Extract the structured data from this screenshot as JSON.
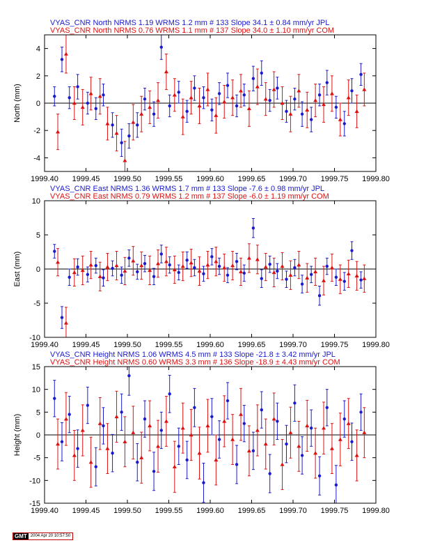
{
  "colors": {
    "jpl": "#1a1acc",
    "com": "#dd1111",
    "axis": "#000000"
  },
  "footer": {
    "logo": "GMT",
    "timestamp": "2004 Apr 20 10:57:50"
  },
  "chart_data": [
    {
      "type": "scatter",
      "component": "north",
      "title_lines": [
        "VYAS_CNR North NRMS 1.19 WRMS  1.2 mm # 133 Slope   34.1 ±  0.84 mm/yr JPL",
        "VYAS_CNR North NRMS 0.76 WRMS  1.1 mm # 137 Slope   34.0 ±  1.10 mm/yr COM"
      ],
      "ylabel": "North (mm)",
      "xlim": [
        1999.4,
        1999.8
      ],
      "ylim": [
        -5,
        5
      ],
      "xticks": [
        1999.4,
        1999.45,
        1999.5,
        1999.55,
        1999.6,
        1999.65,
        1999.7,
        1999.75,
        1999.8
      ],
      "xtick_labels": [
        "1999.40",
        "1999.45",
        "1999.50",
        "1999.55",
        "1999.60",
        "1999.65",
        "1999.70",
        "1999.75",
        "1999.80"
      ],
      "yticks": [
        -4,
        -2,
        0,
        2,
        4
      ],
      "ytick_labels": [
        "-4",
        "-2",
        "0",
        "2",
        "4"
      ],
      "grid": false,
      "zero_line": true,
      "series": [
        {
          "name": "JPL",
          "marker": "circle",
          "t": [
            1999.412,
            1999.421,
            1999.43,
            1999.44,
            1999.452,
            1999.462,
            1999.471,
            1999.482,
            1999.493,
            1999.502,
            1999.512,
            1999.521,
            1999.532,
            1999.541,
            1999.551,
            1999.562,
            1999.572,
            1999.581,
            1999.592,
            1999.602,
            1999.611,
            1999.621,
            1999.632,
            1999.641,
            1999.652,
            1999.662,
            1999.672,
            1999.681,
            1999.692,
            1999.702,
            1999.711,
            1999.722,
            1999.732,
            1999.741,
            1999.752,
            1999.762,
            1999.771,
            1999.782
          ],
          "values": [
            0.5,
            3.2,
            0.4,
            1.2,
            0.0,
            -0.4,
            0.6,
            -1.6,
            -2.9,
            -2.4,
            -1.6,
            0.3,
            -0.8,
            4.1,
            -0.2,
            0.8,
            -0.6,
            1.1,
            0.4,
            -0.5,
            0.7,
            1.3,
            -0.2,
            0.6,
            1.8,
            2.2,
            0.2,
            1.1,
            -0.6,
            0.3,
            -0.8,
            -1.2,
            0.6,
            1.5,
            -0.3,
            -1.5,
            0.9,
            2.1
          ],
          "err": [
            0.7,
            0.9,
            0.8,
            0.9,
            0.8,
            0.8,
            0.8,
            0.9,
            1.0,
            0.9,
            0.9,
            0.8,
            0.9,
            0.9,
            0.8,
            0.8,
            0.8,
            0.9,
            0.8,
            0.8,
            0.8,
            0.9,
            0.8,
            0.8,
            0.9,
            0.9,
            0.8,
            0.8,
            0.8,
            0.8,
            0.9,
            0.9,
            0.8,
            0.9,
            0.8,
            0.9,
            0.9,
            0.8
          ]
        },
        {
          "name": "COM",
          "marker": "triangle",
          "t": [
            1999.416,
            1999.426,
            1999.436,
            1999.446,
            1999.456,
            1999.467,
            1999.476,
            1999.487,
            1999.497,
            1999.507,
            1999.517,
            1999.527,
            1999.537,
            1999.547,
            1999.557,
            1999.567,
            1999.577,
            1999.587,
            1999.597,
            1999.607,
            1999.617,
            1999.627,
            1999.637,
            1999.647,
            1999.657,
            1999.667,
            1999.677,
            1999.687,
            1999.697,
            1999.707,
            1999.717,
            1999.727,
            1999.737,
            1999.747,
            1999.757,
            1999.767,
            1999.777,
            1999.786
          ],
          "values": [
            -2.1,
            3.6,
            0.0,
            -0.3,
            0.7,
            0.5,
            -1.5,
            -2.2,
            -4.2,
            -1.4,
            -0.8,
            -0.3,
            0.2,
            2.3,
            0.6,
            -1.0,
            0.4,
            -0.2,
            1.0,
            -0.9,
            0.1,
            0.4,
            0.9,
            -0.4,
            1.2,
            0.3,
            1.0,
            0.0,
            -0.8,
            0.9,
            -0.5,
            0.2,
            -0.1,
            0.7,
            -1.2,
            0.4,
            -0.6,
            1.0
          ],
          "err": [
            1.3,
            1.4,
            1.2,
            1.3,
            1.2,
            1.3,
            1.2,
            1.3,
            1.4,
            1.3,
            1.3,
            1.2,
            1.3,
            1.3,
            1.2,
            1.3,
            1.2,
            1.3,
            1.2,
            1.3,
            1.2,
            1.3,
            1.2,
            1.3,
            1.3,
            1.2,
            1.3,
            1.2,
            1.3,
            1.2,
            1.3,
            1.2,
            1.3,
            1.3,
            1.2,
            1.3,
            1.2,
            1.2
          ]
        }
      ]
    },
    {
      "type": "scatter",
      "component": "east",
      "title_lines": [
        "VYAS_CNR East NRMS 1.36 WRMS  1.7 mm # 133 Slope   -7.6 ±  0.98 mm/yr JPL",
        "VYAS_CNR East NRMS 0.79 WRMS  1.2 mm # 137 Slope   -6.0 ±  1.19 mm/yr COM"
      ],
      "ylabel": "East (mm)",
      "xlim": [
        1999.4,
        1999.8
      ],
      "ylim": [
        -10,
        10
      ],
      "xticks": [
        1999.4,
        1999.45,
        1999.5,
        1999.55,
        1999.6,
        1999.65,
        1999.7,
        1999.75,
        1999.8
      ],
      "xtick_labels": [
        "1999.40",
        "1999.45",
        "1999.50",
        "1999.55",
        "1999.60",
        "1999.65",
        "1999.70",
        "1999.75",
        "1999.80"
      ],
      "yticks": [
        -10,
        -5,
        0,
        5,
        10
      ],
      "ytick_labels": [
        "-10",
        "-5",
        "0",
        "5",
        "10"
      ],
      "grid": false,
      "zero_line": true,
      "series": [
        {
          "name": "JPL",
          "marker": "circle",
          "t": [
            1999.412,
            1999.421,
            1999.43,
            1999.44,
            1999.452,
            1999.462,
            1999.471,
            1999.482,
            1999.493,
            1999.502,
            1999.512,
            1999.521,
            1999.532,
            1999.541,
            1999.551,
            1999.562,
            1999.572,
            1999.581,
            1999.592,
            1999.602,
            1999.611,
            1999.621,
            1999.632,
            1999.641,
            1999.652,
            1999.662,
            1999.672,
            1999.681,
            1999.692,
            1999.702,
            1999.711,
            1999.722,
            1999.732,
            1999.741,
            1999.752,
            1999.762,
            1999.771,
            1999.782
          ],
          "values": [
            2.6,
            -7.1,
            -1.2,
            0.3,
            -0.8,
            0.5,
            -1.3,
            0.1,
            -0.9,
            1.6,
            -0.4,
            0.8,
            -1.1,
            2.2,
            0.6,
            -0.5,
            1.3,
            0.2,
            -0.7,
            1.8,
            0.4,
            -0.9,
            1.1,
            -0.6,
            6.0,
            -1.4,
            0.7,
            -0.3,
            -1.5,
            0.2,
            -2.2,
            -0.8,
            -3.9,
            0.4,
            -1.2,
            -1.8,
            2.7,
            -1.6
          ],
          "err": [
            1.0,
            1.6,
            1.2,
            1.2,
            1.1,
            1.1,
            1.2,
            1.1,
            1.2,
            1.2,
            1.1,
            1.2,
            1.2,
            1.3,
            1.2,
            1.1,
            1.2,
            1.2,
            1.1,
            1.2,
            1.2,
            1.1,
            1.2,
            1.2,
            1.4,
            1.3,
            1.2,
            1.1,
            1.2,
            1.2,
            1.3,
            1.2,
            1.4,
            1.2,
            1.2,
            1.3,
            1.3,
            1.2
          ]
        },
        {
          "name": "COM",
          "marker": "triangle",
          "t": [
            1999.416,
            1999.426,
            1999.436,
            1999.446,
            1999.456,
            1999.467,
            1999.476,
            1999.487,
            1999.497,
            1999.507,
            1999.517,
            1999.527,
            1999.537,
            1999.547,
            1999.557,
            1999.567,
            1999.577,
            1999.587,
            1999.597,
            1999.607,
            1999.617,
            1999.627,
            1999.637,
            1999.647,
            1999.657,
            1999.667,
            1999.677,
            1999.687,
            1999.697,
            1999.707,
            1999.717,
            1999.727,
            1999.737,
            1999.747,
            1999.757,
            1999.767,
            1999.777,
            1999.786
          ],
          "values": [
            1.0,
            -7.9,
            -0.5,
            -0.2,
            0.6,
            -1.1,
            0.3,
            0.5,
            -0.3,
            1.2,
            0.5,
            -0.2,
            0.8,
            1.1,
            -0.1,
            0.4,
            0.9,
            -0.3,
            0.6,
            1.1,
            0.2,
            0.5,
            -0.4,
            1.6,
            1.4,
            0.3,
            -0.5,
            0.4,
            -0.9,
            0.6,
            -1.3,
            -0.4,
            -1.7,
            0.2,
            -1.5,
            -0.7,
            -1.0,
            -1.4
          ],
          "err": [
            2.0,
            2.3,
            2.0,
            2.1,
            2.0,
            2.1,
            2.0,
            2.1,
            2.0,
            2.1,
            2.0,
            2.1,
            2.0,
            2.1,
            2.0,
            2.1,
            2.0,
            2.1,
            2.0,
            2.1,
            2.0,
            2.1,
            2.0,
            2.1,
            2.1,
            2.0,
            2.1,
            2.0,
            2.1,
            2.0,
            2.1,
            2.0,
            2.1,
            2.0,
            2.1,
            2.0,
            2.1,
            2.0
          ]
        }
      ]
    },
    {
      "type": "scatter",
      "component": "height",
      "title_lines": [
        "VYAS_CNR Height NRMS 1.06 WRMS  4.5 mm # 133 Slope  -21.8 ±  3.42 mm/yr JPL",
        "VYAS_CNR Height NRMS 0.60 WRMS  3.3 mm # 136 Slope  -18.9 ±  4.43 mm/yr COM"
      ],
      "ylabel": "Height (mm)",
      "xlim": [
        1999.4,
        1999.8
      ],
      "ylim": [
        -15,
        15
      ],
      "xticks": [
        1999.4,
        1999.45,
        1999.5,
        1999.55,
        1999.6,
        1999.65,
        1999.7,
        1999.75,
        1999.8
      ],
      "xtick_labels": [
        "1999.40",
        "1999.45",
        "1999.50",
        "1999.55",
        "1999.60",
        "1999.65",
        "1999.70",
        "1999.75",
        "1999.80"
      ],
      "yticks": [
        -15,
        -10,
        -5,
        0,
        5,
        10,
        15
      ],
      "ytick_labels": [
        "-15",
        "-10",
        "-5",
        "0",
        "5",
        "10",
        "15"
      ],
      "grid": false,
      "zero_line": true,
      "series": [
        {
          "name": "JPL",
          "marker": "circle",
          "t": [
            1999.412,
            1999.421,
            1999.43,
            1999.44,
            1999.452,
            1999.462,
            1999.471,
            1999.482,
            1999.493,
            1999.502,
            1999.512,
            1999.521,
            1999.532,
            1999.541,
            1999.551,
            1999.562,
            1999.572,
            1999.581,
            1999.592,
            1999.602,
            1999.611,
            1999.621,
            1999.632,
            1999.641,
            1999.652,
            1999.662,
            1999.672,
            1999.681,
            1999.692,
            1999.702,
            1999.711,
            1999.722,
            1999.732,
            1999.741,
            1999.752,
            1999.762,
            1999.771,
            1999.782
          ],
          "values": [
            8.0,
            -1.5,
            4.5,
            -3.0,
            6.5,
            -7.0,
            2.0,
            -4.0,
            5.0,
            13.0,
            -6.0,
            3.5,
            -8.0,
            1.0,
            9.0,
            -2.5,
            -5.5,
            6.0,
            -10.5,
            4.0,
            -1.0,
            7.5,
            -6.5,
            2.5,
            -3.5,
            5.5,
            -8.5,
            3.0,
            -2.0,
            7.0,
            -4.5,
            1.5,
            -9.0,
            6.0,
            -11.0,
            3.5,
            -1.5,
            5.0
          ],
          "err": [
            4.0,
            4.2,
            4.0,
            4.1,
            4.0,
            4.2,
            4.0,
            4.1,
            4.0,
            4.3,
            4.1,
            4.0,
            4.2,
            4.0,
            4.1,
            4.0,
            4.1,
            4.2,
            4.3,
            4.0,
            4.1,
            4.0,
            4.2,
            4.0,
            4.1,
            4.0,
            4.2,
            4.0,
            4.1,
            4.0,
            4.1,
            4.0,
            4.2,
            4.0,
            4.3,
            4.0,
            4.1,
            4.0
          ]
        },
        {
          "name": "COM",
          "marker": "triangle",
          "t": [
            1999.416,
            1999.426,
            1999.436,
            1999.446,
            1999.456,
            1999.467,
            1999.476,
            1999.487,
            1999.497,
            1999.507,
            1999.517,
            1999.527,
            1999.537,
            1999.547,
            1999.557,
            1999.567,
            1999.577,
            1999.587,
            1999.597,
            1999.607,
            1999.617,
            1999.627,
            1999.637,
            1999.647,
            1999.657,
            1999.667,
            1999.677,
            1999.687,
            1999.697,
            1999.707,
            1999.717,
            1999.727,
            1999.737,
            1999.747,
            1999.757,
            1999.767,
            1999.777,
            1999.786
          ],
          "values": [
            -2.0,
            3.5,
            -4.5,
            1.0,
            -6.0,
            2.5,
            -3.0,
            4.0,
            -1.5,
            0.5,
            -5.0,
            2.0,
            -2.5,
            3.0,
            -7.0,
            1.5,
            0.0,
            -4.0,
            2.0,
            -5.5,
            3.0,
            -1.0,
            4.5,
            -3.5,
            1.0,
            -2.0,
            3.5,
            -6.5,
            0.5,
            -2.5,
            2.0,
            -4.0,
            1.5,
            -3.0,
            -1.0,
            2.5,
            -4.5,
            0.5
          ],
          "err": [
            5.5,
            5.8,
            5.5,
            5.6,
            5.5,
            5.7,
            5.5,
            5.6,
            5.5,
            5.8,
            5.6,
            5.5,
            5.7,
            5.5,
            5.6,
            5.5,
            5.6,
            5.7,
            5.8,
            5.5,
            5.6,
            5.5,
            5.7,
            5.5,
            5.6,
            5.5,
            5.7,
            5.5,
            5.6,
            5.5,
            5.6,
            5.5,
            5.7,
            5.5,
            5.8,
            5.5,
            5.6,
            5.5
          ]
        }
      ]
    }
  ]
}
